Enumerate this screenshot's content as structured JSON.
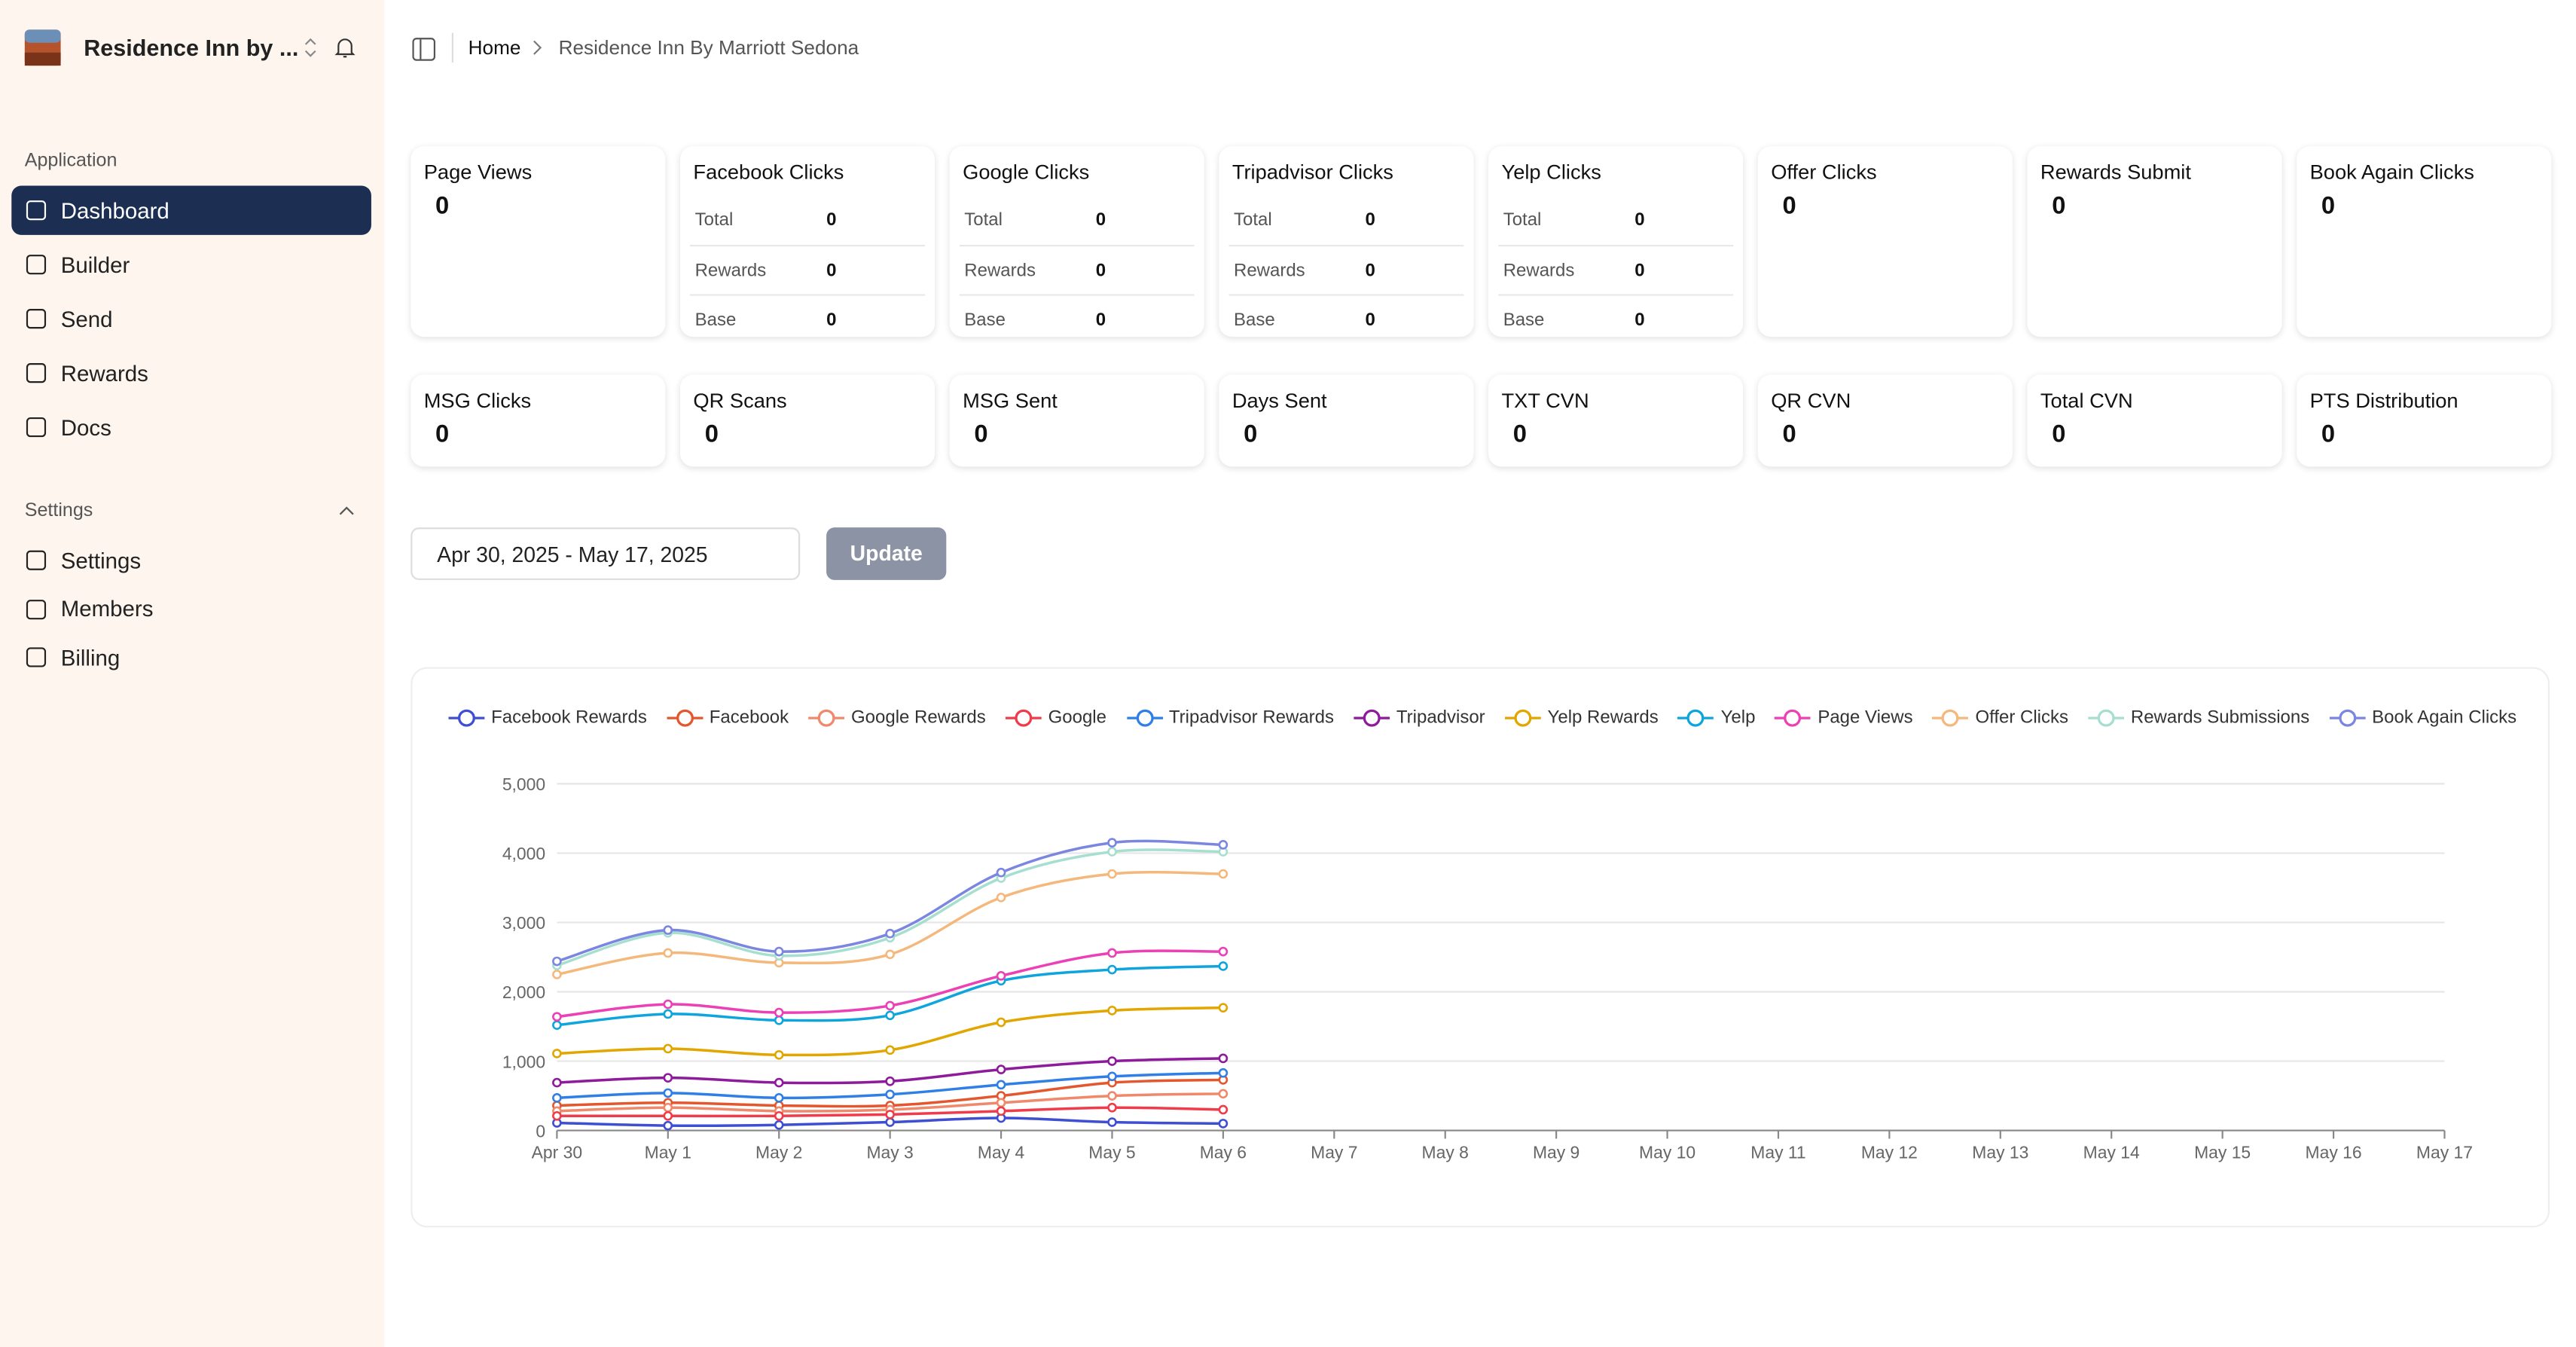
{
  "sidebar": {
    "brand": "Residence Inn by ...",
    "section_application": "Application",
    "nav": [
      "Dashboard",
      "Builder",
      "Send",
      "Rewards",
      "Docs"
    ],
    "section_settings": "Settings",
    "settings_nav": [
      "Settings",
      "Members",
      "Billing"
    ]
  },
  "breadcrumb": {
    "home": "Home",
    "current": "Residence Inn By Marriott Sedona"
  },
  "stats_row1": [
    {
      "title": "Page Views",
      "value": 0
    },
    {
      "title": "Facebook Clicks",
      "items": [
        {
          "label": "Total",
          "value": 0
        },
        {
          "label": "Rewards",
          "value": 0
        },
        {
          "label": "Base",
          "value": 0
        }
      ]
    },
    {
      "title": "Google Clicks",
      "items": [
        {
          "label": "Total",
          "value": 0
        },
        {
          "label": "Rewards",
          "value": 0
        },
        {
          "label": "Base",
          "value": 0
        }
      ]
    },
    {
      "title": "Tripadvisor Clicks",
      "items": [
        {
          "label": "Total",
          "value": 0
        },
        {
          "label": "Rewards",
          "value": 0
        },
        {
          "label": "Base",
          "value": 0
        }
      ]
    },
    {
      "title": "Yelp Clicks",
      "items": [
        {
          "label": "Total",
          "value": 0
        },
        {
          "label": "Rewards",
          "value": 0
        },
        {
          "label": "Base",
          "value": 0
        }
      ]
    },
    {
      "title": "Offer Clicks",
      "value": 0
    },
    {
      "title": "Rewards Submit",
      "value": 0
    },
    {
      "title": "Book Again Clicks",
      "value": 0
    }
  ],
  "stats_row2": [
    {
      "title": "MSG Clicks",
      "value": 0
    },
    {
      "title": "QR Scans",
      "value": 0
    },
    {
      "title": "MSG Sent",
      "value": 0
    },
    {
      "title": "Days Sent",
      "value": 0
    },
    {
      "title": "TXT CVN",
      "value": 0
    },
    {
      "title": "QR CVN",
      "value": 0
    },
    {
      "title": "Total CVN",
      "value": 0
    },
    {
      "title": "PTS Distribution",
      "value": 0
    }
  ],
  "date_range": "Apr 30, 2025 - May 17, 2025",
  "update_button": "Update",
  "chart_data": {
    "type": "line",
    "categories": [
      "Apr 30",
      "May 1",
      "May 2",
      "May 3",
      "May 4",
      "May 5",
      "May 6",
      "May 7",
      "May 8",
      "May 9",
      "May 10",
      "May 11",
      "May 12",
      "May 13",
      "May 14",
      "May 15",
      "May 16",
      "May 17"
    ],
    "ylim": [
      0,
      5000
    ],
    "yticks": [
      0,
      {
        "value": 1000,
        "label": "1,000"
      },
      {
        "value": 2000,
        "label": "2,000"
      },
      {
        "value": 3000,
        "label": "3,000"
      },
      {
        "value": 4000,
        "label": "4,000"
      },
      {
        "value": 5000,
        "label": "5,000"
      }
    ],
    "grid": true,
    "series": [
      {
        "name": "Facebook Rewards",
        "color": "#3f4fd1",
        "values": [
          110,
          70,
          80,
          120,
          180,
          120,
          100,
          null,
          null,
          null,
          null,
          null,
          null,
          null,
          null,
          null,
          null,
          null
        ]
      },
      {
        "name": "Facebook",
        "color": "#e4572e",
        "values": [
          360,
          400,
          360,
          360,
          500,
          690,
          730,
          null,
          null,
          null,
          null,
          null,
          null,
          null,
          null,
          null,
          null,
          null
        ]
      },
      {
        "name": "Google Rewards",
        "color": "#f0896b",
        "values": [
          280,
          330,
          280,
          300,
          400,
          500,
          530,
          null,
          null,
          null,
          null,
          null,
          null,
          null,
          null,
          null,
          null,
          null
        ]
      },
      {
        "name": "Google",
        "color": "#ef3b4a",
        "values": [
          210,
          210,
          210,
          230,
          280,
          330,
          300,
          null,
          null,
          null,
          null,
          null,
          null,
          null,
          null,
          null,
          null,
          null
        ]
      },
      {
        "name": "Tripadvisor Rewards",
        "color": "#2f7fe6",
        "values": [
          470,
          540,
          470,
          520,
          660,
          780,
          830,
          null,
          null,
          null,
          null,
          null,
          null,
          null,
          null,
          null,
          null,
          null
        ]
      },
      {
        "name": "Tripadvisor",
        "color": "#8e1a9c",
        "values": [
          690,
          760,
          690,
          710,
          880,
          1000,
          1040,
          null,
          null,
          null,
          null,
          null,
          null,
          null,
          null,
          null,
          null,
          null
        ]
      },
      {
        "name": "Yelp Rewards",
        "color": "#e1a600",
        "values": [
          1110,
          1180,
          1090,
          1160,
          1560,
          1730,
          1770,
          null,
          null,
          null,
          null,
          null,
          null,
          null,
          null,
          null,
          null,
          null
        ]
      },
      {
        "name": "Yelp",
        "color": "#0ea5dd",
        "values": [
          1520,
          1680,
          1590,
          1660,
          2160,
          2320,
          2370,
          null,
          null,
          null,
          null,
          null,
          null,
          null,
          null,
          null,
          null,
          null
        ]
      },
      {
        "name": "Page Views",
        "color": "#ec40b5",
        "values": [
          1640,
          1820,
          1700,
          1800,
          2230,
          2560,
          2580,
          null,
          null,
          null,
          null,
          null,
          null,
          null,
          null,
          null,
          null,
          null
        ]
      },
      {
        "name": "Offer Clicks",
        "color": "#f5b87c",
        "values": [
          2250,
          2560,
          2420,
          2540,
          3360,
          3700,
          3700,
          null,
          null,
          null,
          null,
          null,
          null,
          null,
          null,
          null,
          null,
          null
        ]
      },
      {
        "name": "Rewards Submissions",
        "color": "#a6dfd0",
        "values": [
          2380,
          2850,
          2520,
          2780,
          3640,
          4020,
          4020,
          null,
          null,
          null,
          null,
          null,
          null,
          null,
          null,
          null,
          null,
          null
        ]
      },
      {
        "name": "Book Again Clicks",
        "color": "#7a86e0",
        "values": [
          2440,
          2890,
          2580,
          2840,
          3720,
          4150,
          4120,
          null,
          null,
          null,
          null,
          null,
          null,
          null,
          null,
          null,
          null,
          null
        ]
      }
    ]
  }
}
